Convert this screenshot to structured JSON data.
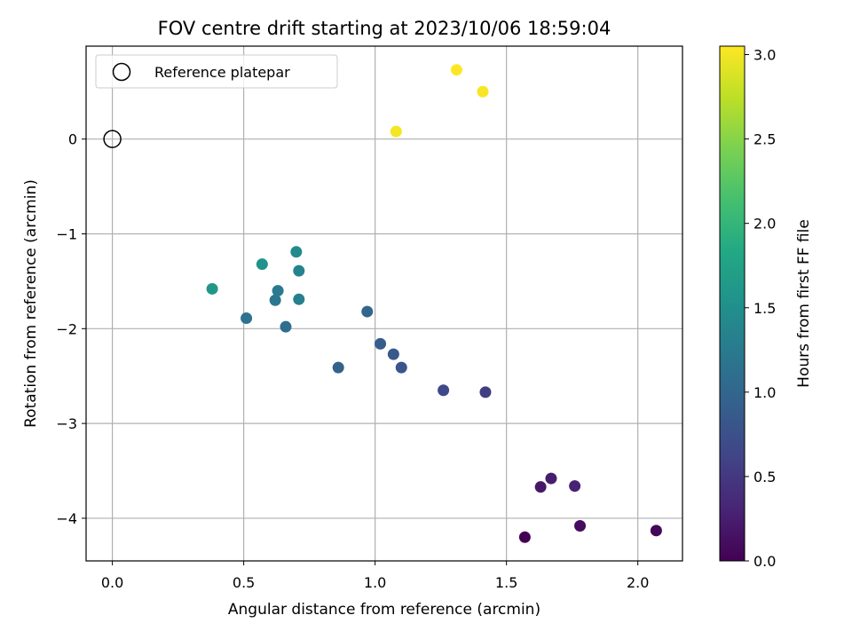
{
  "chart_data": {
    "type": "scatter",
    "title": "FOV centre drift starting at 2023/10/06 18:59:04",
    "xlabel": "Angular distance from reference (arcmin)",
    "ylabel": "Rotation from reference (arcmin)",
    "xlim": [
      -0.1,
      2.17
    ],
    "ylim": [
      -4.45,
      0.98
    ],
    "x_ticks": [
      0.0,
      0.5,
      1.0,
      1.5,
      2.0
    ],
    "x_tick_labels": [
      "0.0",
      "0.5",
      "1.0",
      "1.5",
      "2.0"
    ],
    "y_ticks": [
      0,
      -1,
      -2,
      -3,
      -4
    ],
    "y_tick_labels": [
      "0",
      "−1",
      "−2",
      "−3",
      "−4"
    ],
    "grid": true,
    "legend": {
      "position": "top-left",
      "label": "Reference platepar"
    },
    "reference_point": {
      "x": 0.0,
      "y": 0.0
    },
    "colorbar": {
      "label": "Hours from first FF file",
      "colormap": "viridis",
      "range": [
        0.0,
        3.05
      ],
      "ticks": [
        0.0,
        0.5,
        1.0,
        1.5,
        2.0,
        2.5,
        3.0
      ],
      "tick_labels": [
        "0.0",
        "0.5",
        "1.0",
        "1.5",
        "2.0",
        "2.5",
        "3.0"
      ]
    },
    "points": [
      {
        "x": 1.57,
        "y": -4.2,
        "hours": 0.0
      },
      {
        "x": 2.07,
        "y": -4.13,
        "hours": 0.05
      },
      {
        "x": 1.78,
        "y": -4.08,
        "hours": 0.1
      },
      {
        "x": 1.63,
        "y": -3.67,
        "hours": 0.2
      },
      {
        "x": 1.67,
        "y": -3.58,
        "hours": 0.25
      },
      {
        "x": 1.76,
        "y": -3.66,
        "hours": 0.3
      },
      {
        "x": 1.42,
        "y": -2.67,
        "hours": 0.55
      },
      {
        "x": 1.26,
        "y": -2.65,
        "hours": 0.65
      },
      {
        "x": 1.1,
        "y": -2.41,
        "hours": 0.8
      },
      {
        "x": 1.07,
        "y": -2.27,
        "hours": 0.85
      },
      {
        "x": 1.02,
        "y": -2.16,
        "hours": 0.9
      },
      {
        "x": 0.86,
        "y": -2.41,
        "hours": 0.95
      },
      {
        "x": 0.97,
        "y": -1.82,
        "hours": 1.0
      },
      {
        "x": 0.66,
        "y": -1.98,
        "hours": 1.1
      },
      {
        "x": 0.51,
        "y": -1.89,
        "hours": 1.15
      },
      {
        "x": 0.62,
        "y": -1.7,
        "hours": 1.2
      },
      {
        "x": 0.63,
        "y": -1.6,
        "hours": 1.25
      },
      {
        "x": 0.71,
        "y": -1.69,
        "hours": 1.3
      },
      {
        "x": 0.71,
        "y": -1.39,
        "hours": 1.35
      },
      {
        "x": 0.7,
        "y": -1.19,
        "hours": 1.45
      },
      {
        "x": 0.57,
        "y": -1.32,
        "hours": 1.55
      },
      {
        "x": 0.38,
        "y": -1.58,
        "hours": 1.6
      },
      {
        "x": 1.08,
        "y": 0.08,
        "hours": 3.0
      },
      {
        "x": 1.41,
        "y": 0.5,
        "hours": 3.02
      },
      {
        "x": 1.31,
        "y": 0.73,
        "hours": 3.05
      }
    ]
  }
}
